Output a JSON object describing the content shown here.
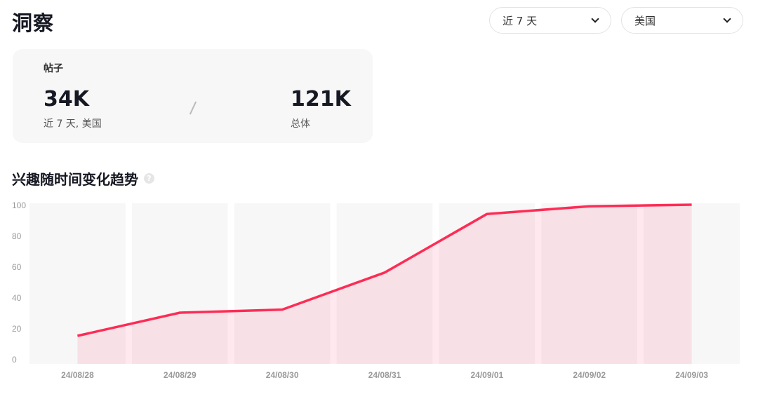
{
  "header": {
    "title": "洞察",
    "time_select": "近 7 天",
    "region_select": "美国"
  },
  "card": {
    "label": "帖子",
    "recent_value": "34K",
    "recent_caption": "近 7 天, 美国",
    "total_value": "121K",
    "total_caption": "总体"
  },
  "section": {
    "title": "兴趣随时间变化趋势",
    "help_icon": "question-circle-icon"
  },
  "chart_data": {
    "type": "area",
    "title": "兴趣随时间变化趋势",
    "categories": [
      "24/08/28",
      "24/08/29",
      "24/08/30",
      "24/08/31",
      "24/09/01",
      "24/09/02",
      "24/09/03"
    ],
    "values": [
      15,
      30,
      32,
      56,
      94,
      99,
      100
    ],
    "ylim": [
      0,
      100
    ],
    "yticks": [
      0,
      20,
      40,
      60,
      80,
      100
    ],
    "grid": false,
    "colors": {
      "line": "#fe2c55",
      "fill": "#f7e3e6",
      "band": "#f7f7f7"
    }
  }
}
